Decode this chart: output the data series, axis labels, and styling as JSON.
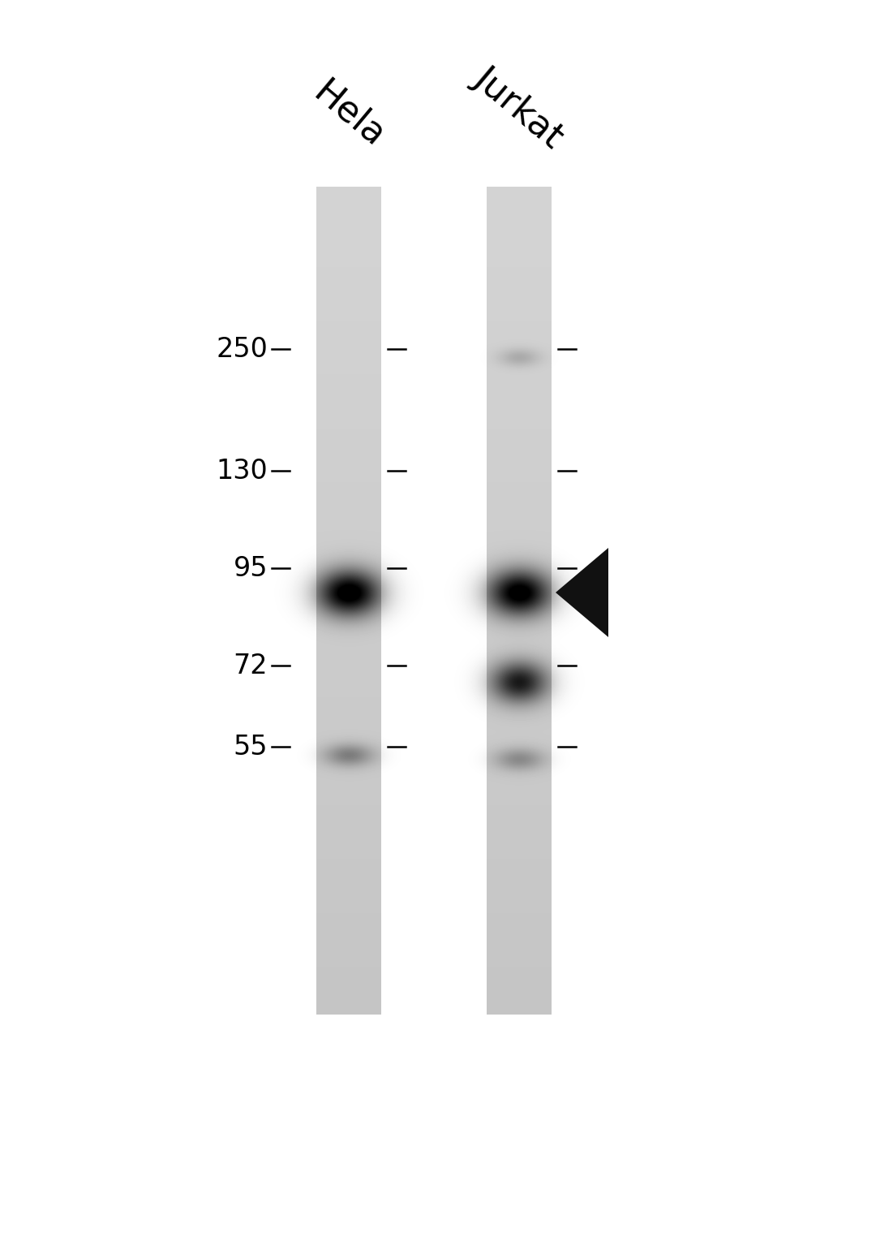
{
  "background_color": "#ffffff",
  "fig_width": 10.8,
  "fig_height": 15.29,
  "dpi": 100,
  "lane_color_rgb": [
    0.82,
    0.82,
    0.82
  ],
  "label1": "Hela",
  "label2": "Jurkat",
  "label_fontsize": 32,
  "label_rotation": -40,
  "mw_labels": [
    "250",
    "130",
    "95",
    "72",
    "55"
  ],
  "mw_fontsize": 24,
  "arrow_color": "#111111",
  "tick_color": "#000000",
  "tick_linewidth": 1.8
}
